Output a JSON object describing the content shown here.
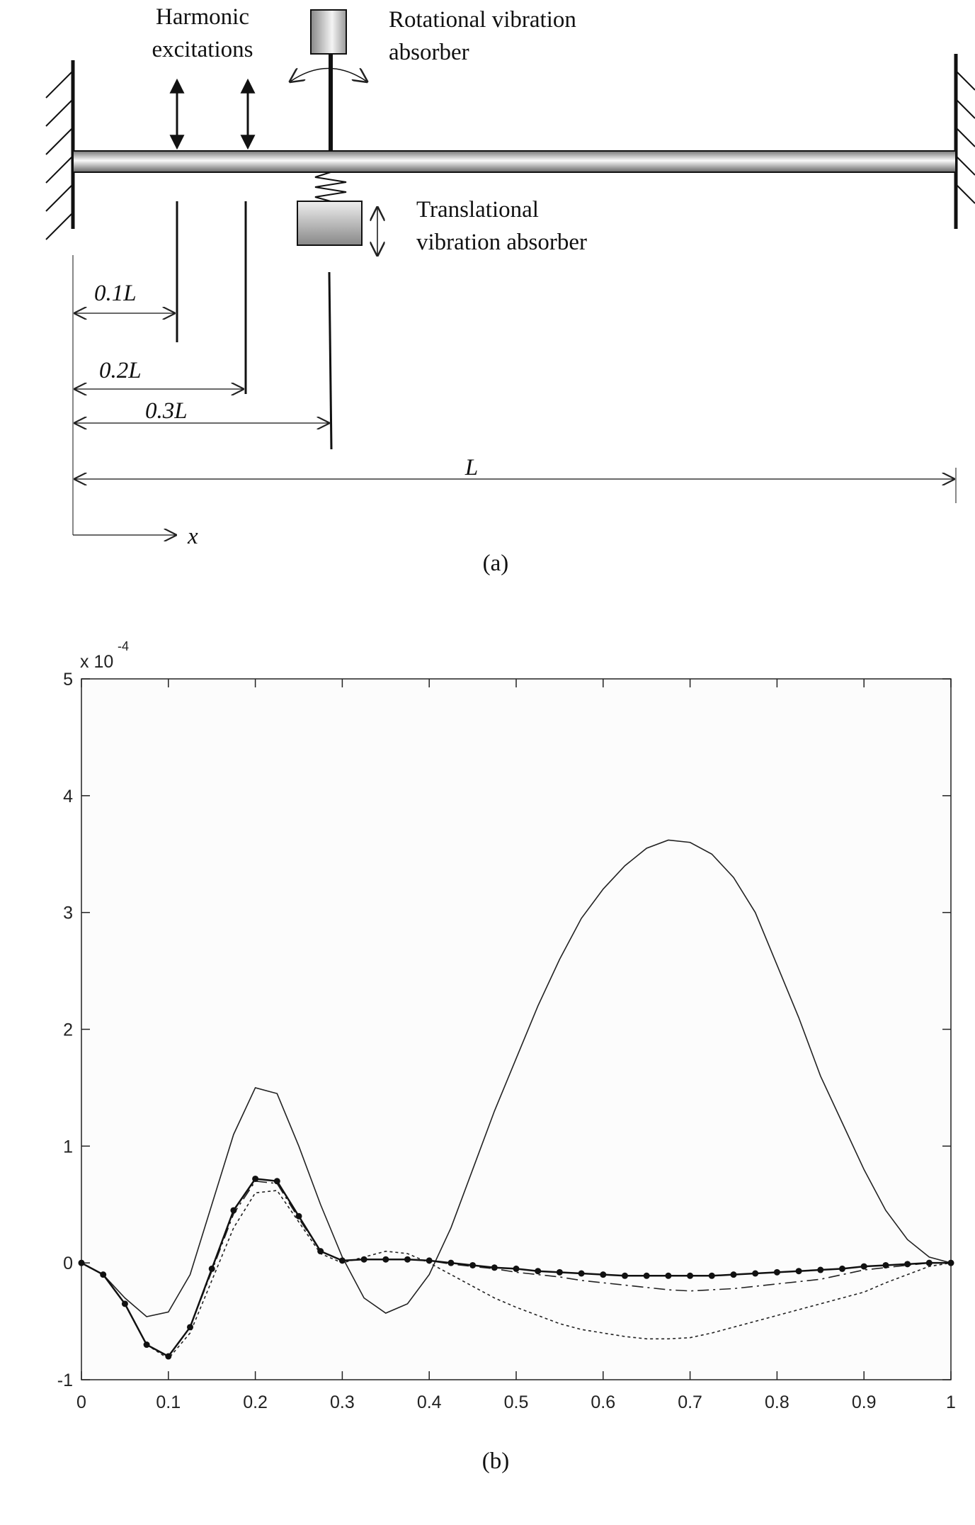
{
  "diagram": {
    "harmonic_line1": "Harmonic",
    "harmonic_line2": "excitations",
    "rotational_line1": "Rotational vibration",
    "rotational_line2": "absorber",
    "translational_line1": "Translational",
    "translational_line2": "vibration absorber",
    "dim_01": "0.1L",
    "dim_02": "0.2L",
    "dim_03": "0.3L",
    "dim_L": "L",
    "axis_x": "x",
    "caption": "(a)"
  },
  "chart_data": {
    "type": "line",
    "y_multiplier": "x 10",
    "y_multiplier_exponent": "-4",
    "caption": "(b)",
    "xlim": [
      0,
      1
    ],
    "ylim": [
      -1,
      5
    ],
    "xticks": [
      0,
      0.1,
      0.2,
      0.3,
      0.4,
      0.5,
      0.6,
      0.7,
      0.8,
      0.9,
      1
    ],
    "yticks": [
      -1,
      0,
      1,
      2,
      3,
      4,
      5
    ],
    "x": [
      0,
      0.025,
      0.05,
      0.075,
      0.1,
      0.125,
      0.15,
      0.175,
      0.2,
      0.225,
      0.25,
      0.275,
      0.3,
      0.325,
      0.35,
      0.375,
      0.4,
      0.425,
      0.45,
      0.475,
      0.5,
      0.525,
      0.55,
      0.575,
      0.6,
      0.625,
      0.65,
      0.675,
      0.7,
      0.725,
      0.75,
      0.775,
      0.8,
      0.825,
      0.85,
      0.875,
      0.9,
      0.925,
      0.95,
      0.975,
      1
    ],
    "series": [
      {
        "color": "#222222",
        "line_style": "solid",
        "values": [
          0,
          -0.1,
          -0.3,
          -0.46,
          -0.42,
          -0.1,
          0.5,
          1.1,
          1.5,
          1.45,
          1.0,
          0.5,
          0.05,
          -0.3,
          -0.43,
          -0.35,
          -0.1,
          0.3,
          0.8,
          1.3,
          1.75,
          2.2,
          2.6,
          2.95,
          3.2,
          3.4,
          3.55,
          3.62,
          3.6,
          3.5,
          3.3,
          3.0,
          2.55,
          2.1,
          1.6,
          1.2,
          0.8,
          0.45,
          0.2,
          0.05,
          0
        ]
      },
      {
        "color": "#222222",
        "line_style": "dotted",
        "values": [
          0,
          -0.1,
          -0.35,
          -0.7,
          -0.82,
          -0.6,
          -0.15,
          0.3,
          0.6,
          0.62,
          0.35,
          0.08,
          0,
          0.05,
          0.1,
          0.08,
          0,
          -0.1,
          -0.2,
          -0.3,
          -0.38,
          -0.45,
          -0.52,
          -0.57,
          -0.6,
          -0.63,
          -0.65,
          -0.65,
          -0.64,
          -0.6,
          -0.55,
          -0.5,
          -0.45,
          -0.4,
          -0.35,
          -0.3,
          -0.25,
          -0.17,
          -0.1,
          -0.03,
          0
        ]
      },
      {
        "color": "#222222",
        "line_style": "dashdot",
        "values": [
          0,
          -0.1,
          -0.35,
          -0.7,
          -0.8,
          -0.55,
          -0.07,
          0.42,
          0.7,
          0.68,
          0.38,
          0.1,
          0.02,
          0.03,
          0.03,
          0.03,
          0.02,
          -0.01,
          -0.03,
          -0.05,
          -0.08,
          -0.1,
          -0.12,
          -0.15,
          -0.17,
          -0.19,
          -0.21,
          -0.23,
          -0.24,
          -0.23,
          -0.22,
          -0.2,
          -0.18,
          -0.16,
          -0.14,
          -0.1,
          -0.06,
          -0.04,
          -0.02,
          0,
          0
        ]
      },
      {
        "color": "#111111",
        "line_style": "solid",
        "marker": "circle",
        "values": [
          0,
          -0.1,
          -0.35,
          -0.7,
          -0.8,
          -0.55,
          -0.05,
          0.45,
          0.72,
          0.7,
          0.4,
          0.1,
          0.02,
          0.03,
          0.03,
          0.03,
          0.02,
          0,
          -0.02,
          -0.04,
          -0.05,
          -0.07,
          -0.08,
          -0.09,
          -0.1,
          -0.11,
          -0.11,
          -0.11,
          -0.11,
          -0.11,
          -0.1,
          -0.09,
          -0.08,
          -0.07,
          -0.06,
          -0.05,
          -0.03,
          -0.02,
          -0.01,
          0,
          0
        ]
      }
    ]
  }
}
